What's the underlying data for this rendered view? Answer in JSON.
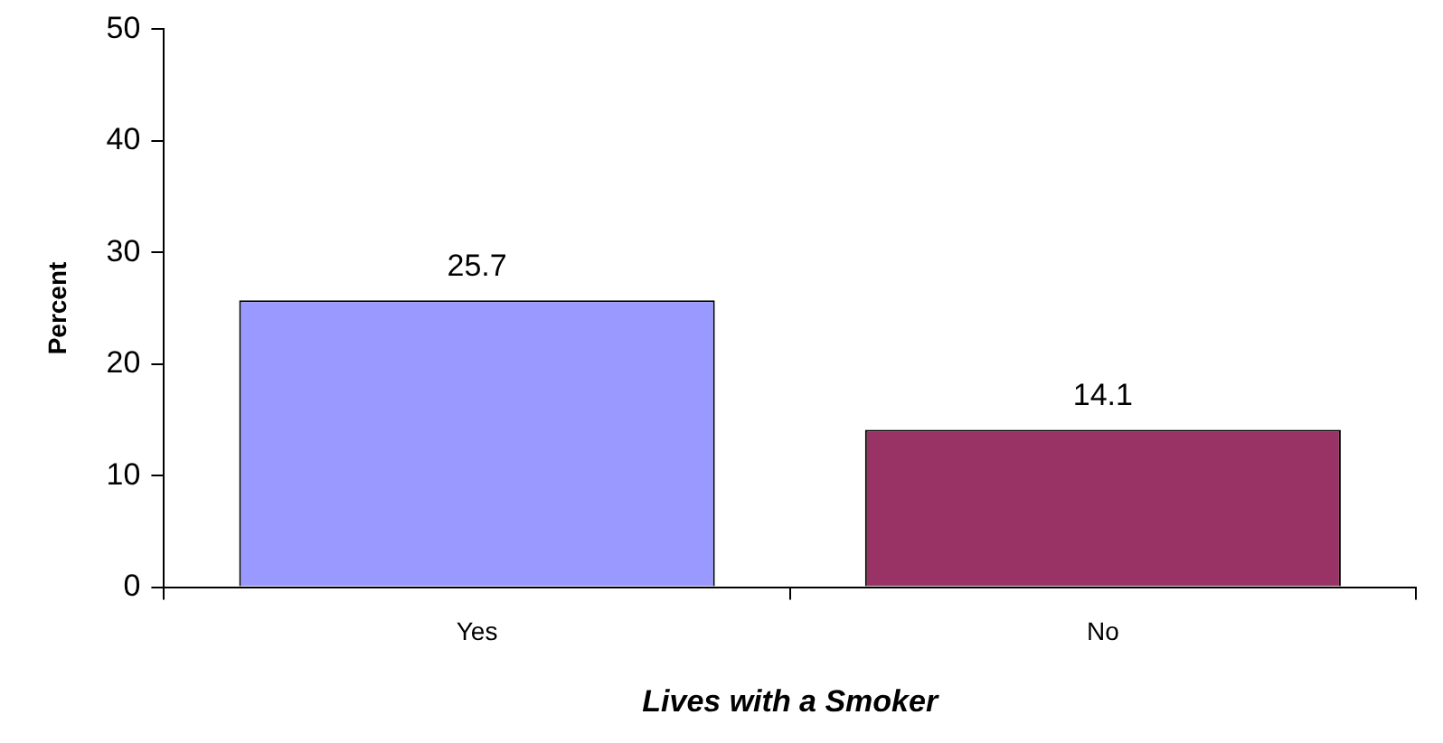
{
  "chart_data": {
    "type": "bar",
    "xlabel": "Lives with a Smoker",
    "ylabel": "Percent",
    "categories": [
      "Yes",
      "No"
    ],
    "values": [
      25.7,
      14.1
    ],
    "colors": [
      "#9999ff",
      "#993366"
    ],
    "ylim": [
      0,
      50
    ],
    "yticks": [
      0,
      10,
      20,
      30,
      40,
      50
    ],
    "grid": false,
    "legend": false,
    "data_labels": true
  }
}
